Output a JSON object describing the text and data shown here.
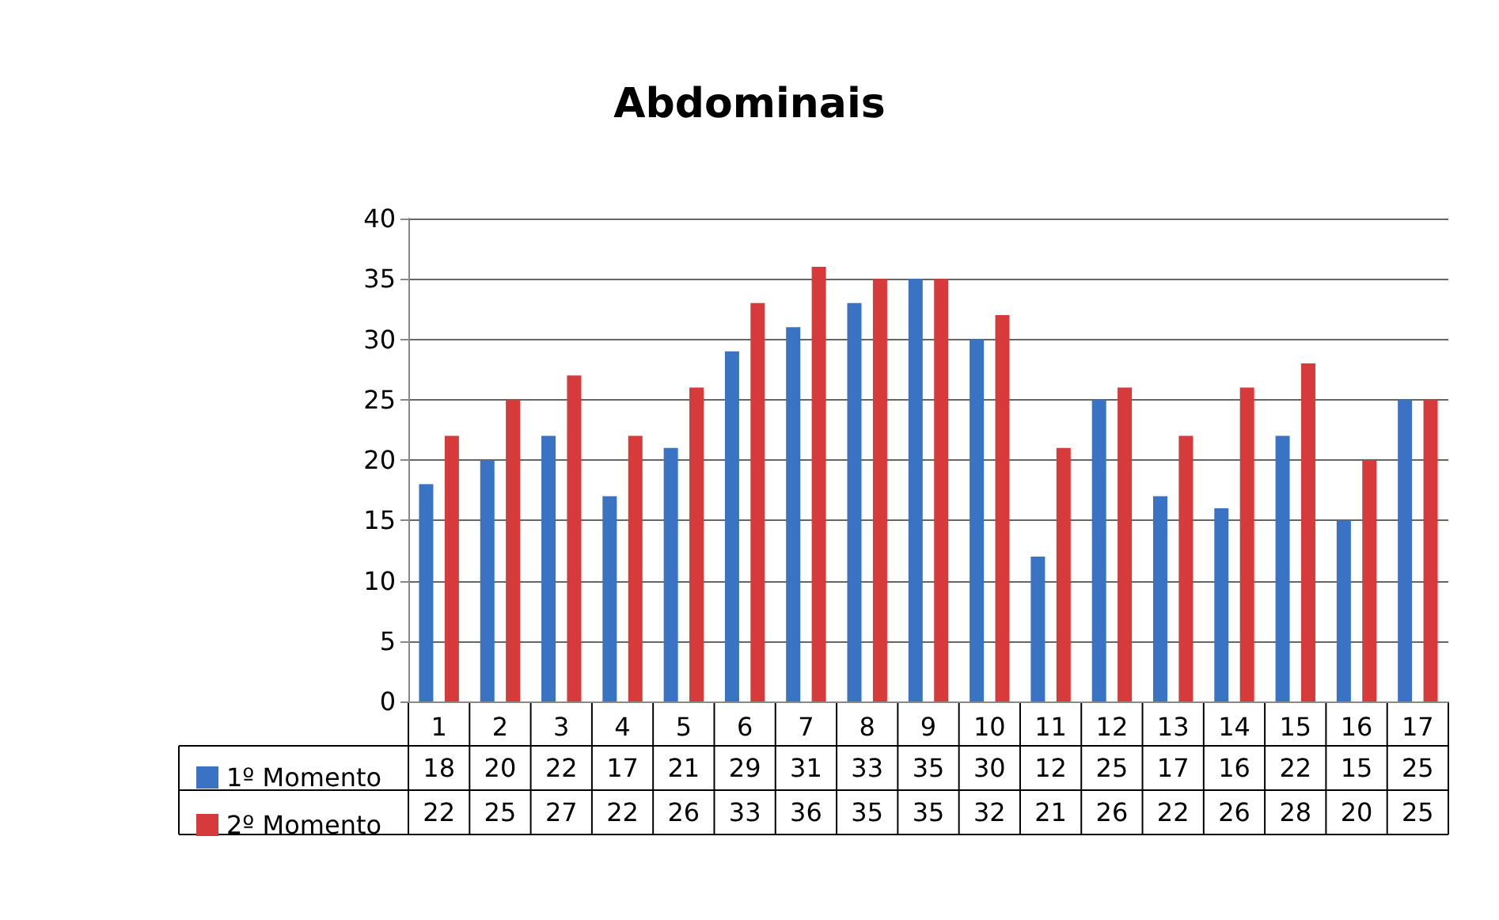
{
  "chart_data": {
    "type": "bar",
    "title": "Abdominais",
    "categories": [
      "1",
      "2",
      "3",
      "4",
      "5",
      "6",
      "7",
      "8",
      "9",
      "10",
      "11",
      "12",
      "13",
      "14",
      "15",
      "16",
      "17"
    ],
    "series": [
      {
        "name": "1º Momento",
        "color": "#3a73c4",
        "values": [
          18,
          20,
          22,
          17,
          21,
          29,
          31,
          33,
          35,
          30,
          12,
          25,
          17,
          16,
          22,
          15,
          25
        ]
      },
      {
        "name": "2º Momento",
        "color": "#d63a3a",
        "values": [
          22,
          25,
          27,
          22,
          26,
          33,
          36,
          35,
          35,
          32,
          21,
          26,
          22,
          26,
          28,
          20,
          25
        ]
      }
    ],
    "ylim": [
      0,
      40
    ],
    "yticks": [
      0,
      5,
      10,
      15,
      20,
      25,
      30,
      35,
      40
    ],
    "grid": "y",
    "legend": "bottom",
    "data_labels": true
  }
}
